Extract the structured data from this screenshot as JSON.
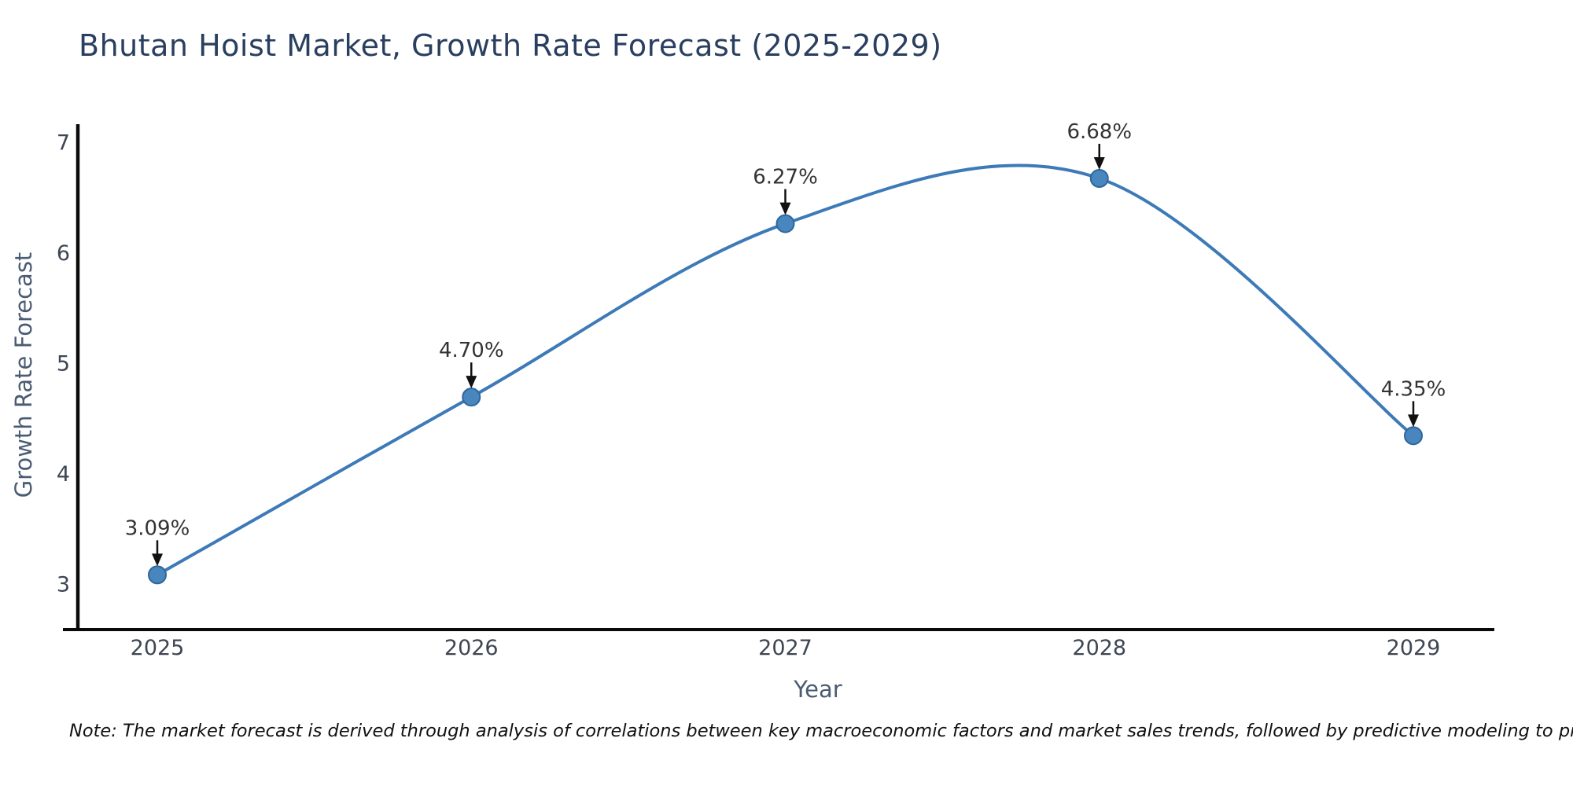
{
  "title": "Bhutan Hoist Market, Growth Rate Forecast (2025-2029)",
  "note": "Note: The market forecast is derived through analysis of correlations between key macroeconomic factors and market sales trends, followed by predictive modeling to project future sales.",
  "chart_data": {
    "type": "line",
    "title": "Bhutan Hoist Market, Growth Rate Forecast (2025-2029)",
    "xlabel": "Year",
    "ylabel": "Growth Rate Forecast",
    "categories": [
      "2025",
      "2026",
      "2027",
      "2028",
      "2029"
    ],
    "values": [
      3.09,
      4.7,
      6.27,
      6.68,
      4.35
    ],
    "point_labels": [
      "3.09%",
      "4.70%",
      "6.27%",
      "6.68%",
      "4.35%"
    ],
    "yticks": [
      3,
      4,
      5,
      6,
      7
    ],
    "ylim": [
      2.6,
      7.17
    ],
    "line_shape": "spline",
    "grid": false,
    "legend": false,
    "colors": {
      "line": "#3d7ab7",
      "marker_fill": "#4886bd",
      "marker_edge": "#2d679d",
      "axis_line": "#0a0a0a",
      "tick_label": "#3d4653",
      "axis_title": "#4a5b73",
      "title": "#2a3f5f",
      "annotation_text": "#333333",
      "annotation_arrow": "#111111"
    }
  }
}
